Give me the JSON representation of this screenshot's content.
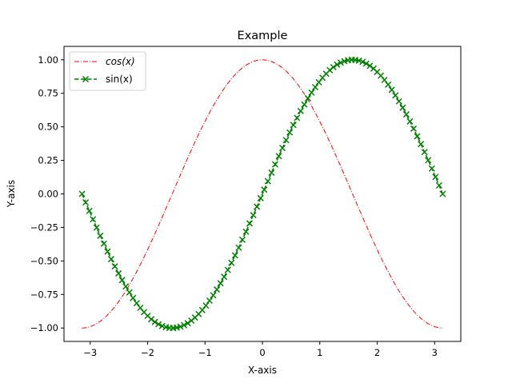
{
  "chart_data": {
    "type": "line",
    "title": "Example",
    "xlabel": "X-axis",
    "ylabel": "Y-axis",
    "xlim": [
      -3.4558,
      3.4558
    ],
    "ylim": [
      -1.1,
      1.1
    ],
    "xticks": [
      -3,
      -2,
      -1,
      0,
      1,
      2,
      3
    ],
    "xtick_labels": [
      "−3",
      "−2",
      "−1",
      "0",
      "1",
      "2",
      "3"
    ],
    "yticks": [
      -1.0,
      -0.75,
      -0.5,
      -0.25,
      0.0,
      0.25,
      0.5,
      0.75,
      1.0
    ],
    "ytick_labels": [
      "−1.00",
      "−0.75",
      "−0.50",
      "−0.25",
      "0.00",
      "0.25",
      "0.50",
      "0.75",
      "1.00"
    ],
    "grid": false,
    "legend_position": "upper left",
    "x_range": [
      -3.14159,
      3.14159
    ],
    "num_points": 100,
    "series": [
      {
        "name": "cos(x)",
        "label_display": "cos(x)",
        "function": "cos",
        "color": "#ff0000",
        "linestyle": "dashdot",
        "marker": "none"
      },
      {
        "name": "sin(x)",
        "label_display": "sin(x)",
        "function": "sin",
        "color": "#008000",
        "linestyle": "dashed",
        "marker": "x"
      }
    ]
  }
}
